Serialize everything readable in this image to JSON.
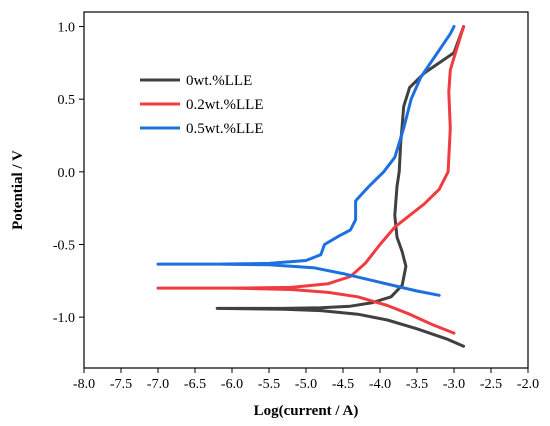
{
  "chart_data": {
    "type": "line",
    "title": "",
    "xlabel": "Log(current / A)",
    "ylabel": "Potential / V",
    "xlim": [
      -8.0,
      -2.0
    ],
    "ylim": [
      -1.35,
      1.1
    ],
    "xticks": [
      "-8.0",
      "-7.5",
      "-7.0",
      "-6.5",
      "-6.0",
      "-5.5",
      "-5.0",
      "-4.5",
      "-4.0",
      "-3.5",
      "-3.0",
      "-2.5",
      "-2.0"
    ],
    "yticks": [
      "-1.0",
      "-0.5",
      "0.0",
      "0.5",
      "1.0"
    ],
    "legend_position": "top-left",
    "grid": false,
    "series": [
      {
        "name": "0wt.%LLE",
        "color": "#404040",
        "points": [
          [
            -2.87,
            -1.2
          ],
          [
            -3.1,
            -1.15
          ],
          [
            -3.5,
            -1.08
          ],
          [
            -3.9,
            -1.02
          ],
          [
            -4.3,
            -0.98
          ],
          [
            -4.8,
            -0.955
          ],
          [
            -5.3,
            -0.945
          ],
          [
            -6.2,
            -0.94
          ],
          [
            -5.3,
            -0.94
          ],
          [
            -4.8,
            -0.935
          ],
          [
            -4.4,
            -0.925
          ],
          [
            -4.1,
            -0.9
          ],
          [
            -3.85,
            -0.86
          ],
          [
            -3.7,
            -0.78
          ],
          [
            -3.65,
            -0.65
          ],
          [
            -3.7,
            -0.55
          ],
          [
            -3.77,
            -0.45
          ],
          [
            -3.8,
            -0.3
          ],
          [
            -3.77,
            -0.1
          ],
          [
            -3.74,
            0.0
          ],
          [
            -3.72,
            0.2
          ],
          [
            -3.7,
            0.32
          ],
          [
            -3.68,
            0.45
          ],
          [
            -3.6,
            0.58
          ],
          [
            -3.4,
            0.68
          ],
          [
            -3.2,
            0.75
          ],
          [
            -3.0,
            0.82
          ],
          [
            -2.87,
            1.0
          ]
        ]
      },
      {
        "name": "0.2wt.%LLE",
        "color": "#f03c40",
        "points": [
          [
            -3.0,
            -1.11
          ],
          [
            -3.3,
            -1.05
          ],
          [
            -3.6,
            -0.98
          ],
          [
            -3.9,
            -0.92
          ],
          [
            -4.3,
            -0.86
          ],
          [
            -4.7,
            -0.83
          ],
          [
            -5.2,
            -0.81
          ],
          [
            -6.0,
            -0.8
          ],
          [
            -7.0,
            -0.8
          ],
          [
            -6.0,
            -0.8
          ],
          [
            -5.2,
            -0.795
          ],
          [
            -4.7,
            -0.77
          ],
          [
            -4.4,
            -0.72
          ],
          [
            -4.2,
            -0.63
          ],
          [
            -4.0,
            -0.5
          ],
          [
            -3.8,
            -0.38
          ],
          [
            -3.6,
            -0.3
          ],
          [
            -3.4,
            -0.22
          ],
          [
            -3.2,
            -0.12
          ],
          [
            -3.08,
            0.0
          ],
          [
            -3.05,
            0.3
          ],
          [
            -3.07,
            0.55
          ],
          [
            -3.05,
            0.7
          ],
          [
            -2.98,
            0.82
          ],
          [
            -2.87,
            1.0
          ]
        ]
      },
      {
        "name": "0.5wt.%LLE",
        "color": "#1e6fe0",
        "points": [
          [
            -3.2,
            -0.85
          ],
          [
            -3.5,
            -0.82
          ],
          [
            -4.0,
            -0.76
          ],
          [
            -4.5,
            -0.7
          ],
          [
            -4.9,
            -0.66
          ],
          [
            -5.5,
            -0.64
          ],
          [
            -6.2,
            -0.635
          ],
          [
            -7.0,
            -0.635
          ],
          [
            -6.2,
            -0.635
          ],
          [
            -5.5,
            -0.63
          ],
          [
            -5.0,
            -0.61
          ],
          [
            -4.8,
            -0.57
          ],
          [
            -4.75,
            -0.5
          ],
          [
            -4.55,
            -0.44
          ],
          [
            -4.4,
            -0.4
          ],
          [
            -4.33,
            -0.33
          ],
          [
            -4.33,
            -0.2
          ],
          [
            -4.15,
            -0.1
          ],
          [
            -3.95,
            0.0
          ],
          [
            -3.8,
            0.1
          ],
          [
            -3.68,
            0.3
          ],
          [
            -3.58,
            0.5
          ],
          [
            -3.45,
            0.65
          ],
          [
            -3.25,
            0.8
          ],
          [
            -3.05,
            0.95
          ],
          [
            -3.0,
            1.0
          ]
        ]
      }
    ]
  }
}
